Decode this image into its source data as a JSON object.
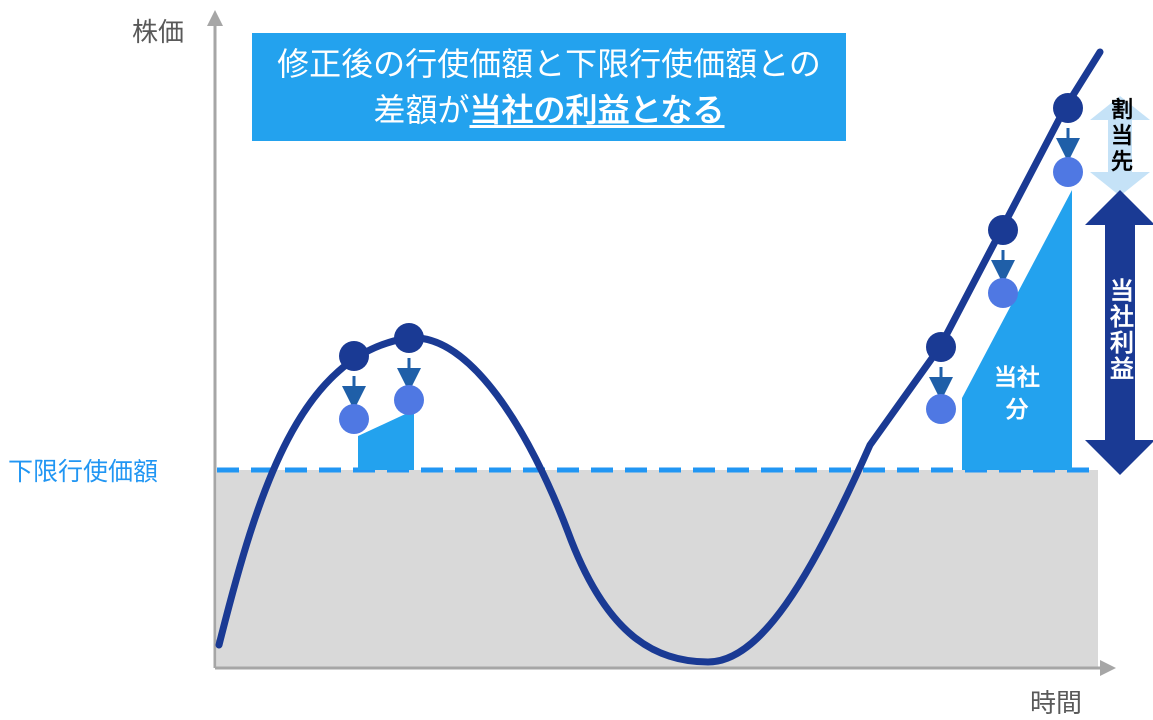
{
  "axis": {
    "y_label": "株価",
    "x_label": "時間",
    "floor_label": "下限行使価額"
  },
  "headline": {
    "line1": "修正後の行使価額と下限行使価額との",
    "line2_plain": "差額が",
    "line2_emphasis": "当社の利益となる"
  },
  "labels": {
    "allocatee": [
      "割",
      "当",
      "先"
    ],
    "company_profit": [
      "当",
      "社",
      "利",
      "益"
    ],
    "company_share": [
      "当社",
      "分"
    ]
  },
  "colors": {
    "curve": "#1a3a94",
    "market_price_point": "#1a3a94",
    "revised_price_point": "#4f78e3",
    "floor_line": "#2196f3",
    "below_floor_area": "#d9d9d9",
    "company_share_area": "#23a2ee",
    "allocatee_arrow": "#c5e2f7",
    "company_profit_arrow": "#1a3a94",
    "headline_bg": "#23a2ee",
    "axis": "#a6a6a6"
  }
}
